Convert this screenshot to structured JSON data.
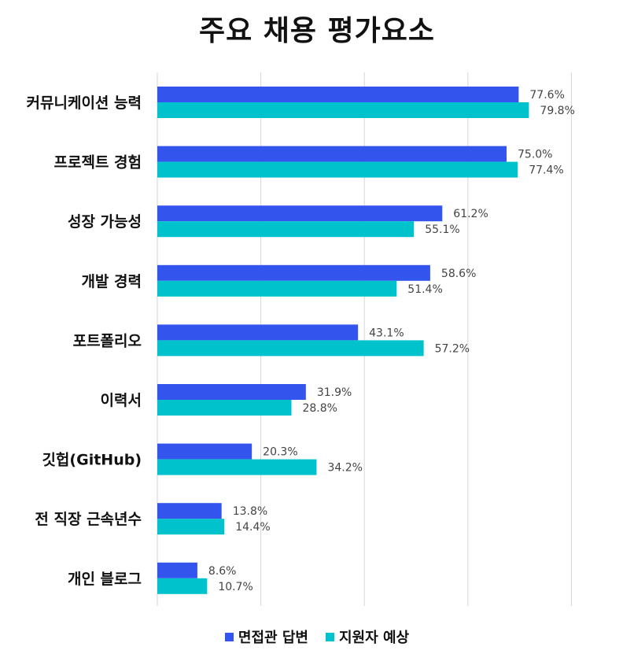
{
  "chart_data": {
    "type": "bar",
    "orientation": "horizontal",
    "title": "주요 채용 평가요소",
    "categories": [
      "커뮤니케이션 능력",
      "프로젝트 경험",
      "성장 가능성",
      "개발 경력",
      "포트폴리오",
      "이력서",
      "깃헙(GitHub)",
      "전 직장 근속년수",
      "개인 블로그"
    ],
    "series": [
      {
        "name": "면접관 답변",
        "color": "#3355EE",
        "values": [
          77.6,
          75.0,
          61.2,
          58.6,
          43.1,
          31.9,
          20.3,
          13.8,
          8.6
        ],
        "labels": [
          "77.6%",
          "75.0%",
          "61.2%",
          "58.6%",
          "43.1%",
          "31.9%",
          "20.3%",
          "13.8%",
          "8.6%"
        ]
      },
      {
        "name": "지원자 예상",
        "color": "#00C2CC",
        "values": [
          79.8,
          77.4,
          55.1,
          51.4,
          57.2,
          28.8,
          34.2,
          14.4,
          10.7
        ],
        "labels": [
          "79.8%",
          "77.4%",
          "55.1%",
          "51.4%",
          "57.2%",
          "28.8%",
          "34.2%",
          "14.4%",
          "10.7%"
        ]
      }
    ],
    "xlim": [
      0,
      100
    ],
    "grid": true,
    "legend_position": "bottom"
  }
}
